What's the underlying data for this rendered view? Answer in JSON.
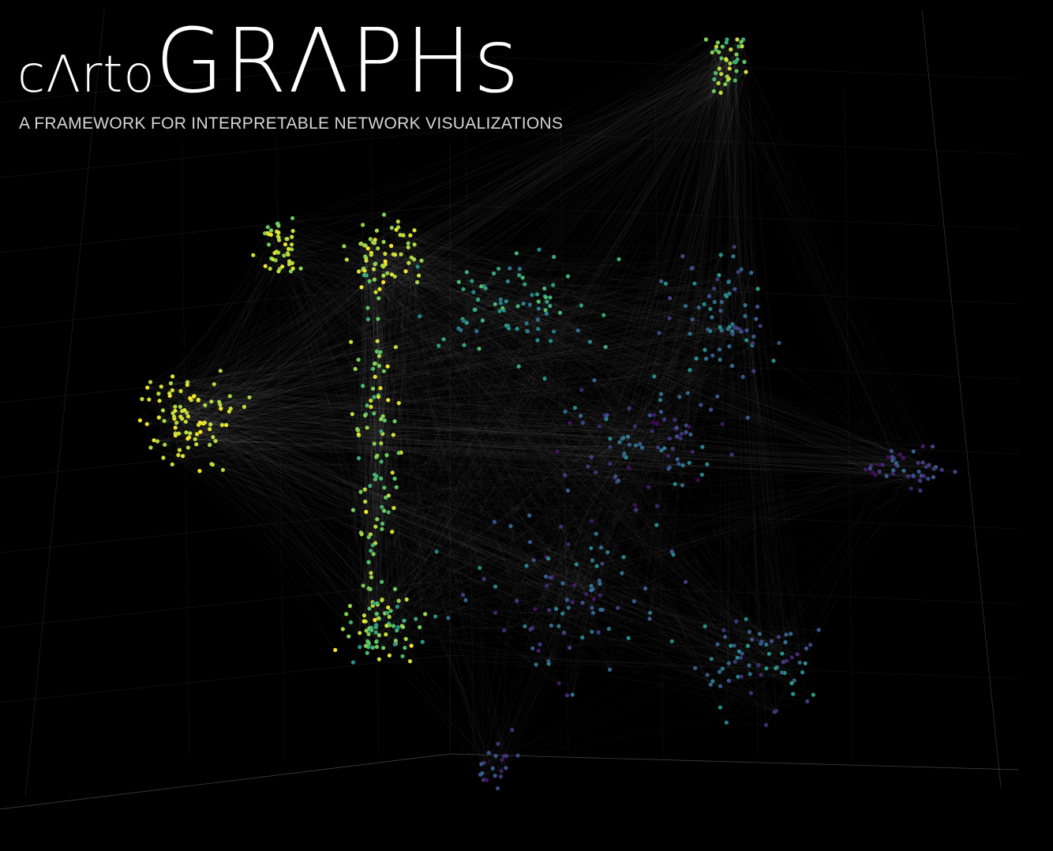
{
  "branding": {
    "logo_prefix": "cΛrto",
    "logo_main": "GRΛPHs",
    "tagline": "A FRAMEWORK FOR INTERPRETABLE NETWORK VISUALIZATIONS"
  },
  "scene": {
    "background": "#000000",
    "edge_color": "#ffffff",
    "grid_color": "#5a5a5a",
    "node_colormap": [
      "#440154",
      "#3b528b",
      "#21918c",
      "#5ec962",
      "#fde725"
    ],
    "clusters": [
      {
        "name": "top-right",
        "n": 40,
        "color_range": [
          0.6,
          0.95
        ]
      },
      {
        "name": "upper-left",
        "n": 45,
        "color_range": [
          0.75,
          1.0
        ]
      },
      {
        "name": "upper-center",
        "n": 60,
        "color_range": [
          0.8,
          1.0
        ]
      },
      {
        "name": "left-hub",
        "n": 90,
        "color_range": [
          0.85,
          1.0
        ]
      },
      {
        "name": "center-column",
        "n": 110,
        "color_range": [
          0.6,
          1.0
        ]
      },
      {
        "name": "upper-mid",
        "n": 80,
        "color_range": [
          0.35,
          0.7
        ]
      },
      {
        "name": "right-upper",
        "n": 70,
        "color_range": [
          0.15,
          0.55
        ]
      },
      {
        "name": "center-right",
        "n": 90,
        "color_range": [
          0.0,
          0.5
        ]
      },
      {
        "name": "far-right",
        "n": 45,
        "color_range": [
          0.0,
          0.35
        ]
      },
      {
        "name": "bottom-left",
        "n": 70,
        "color_range": [
          0.5,
          1.0
        ]
      },
      {
        "name": "bottom-center",
        "n": 90,
        "color_range": [
          0.05,
          0.5
        ]
      },
      {
        "name": "bottom-right",
        "n": 70,
        "color_range": [
          0.1,
          0.55
        ]
      },
      {
        "name": "bottom-tail",
        "n": 20,
        "color_range": [
          0.05,
          0.35
        ]
      }
    ]
  }
}
